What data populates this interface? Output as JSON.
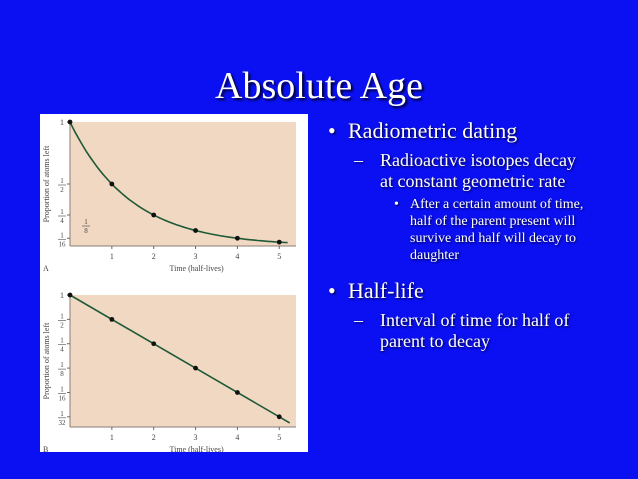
{
  "slide": {
    "title": "Absolute Age",
    "bullets": [
      {
        "text": "Radiometric dating",
        "sub": [
          {
            "text": "Radioactive isotopes decay at constant geometric rate",
            "sub": [
              "After a certain amount of time, half of the parent present will survive and half will decay to daughter"
            ]
          }
        ]
      },
      {
        "text": "Half-life",
        "sub": [
          {
            "text": "Interval of time for half of parent to decay"
          }
        ]
      }
    ],
    "bullet_mark": "•",
    "dash_mark": "–"
  },
  "colors": {
    "background": "#0a10f2",
    "plot_bg": "#f1d8c3",
    "curve": "#1e5a36"
  },
  "chart_data": [
    {
      "type": "line",
      "panel_label": "A",
      "xlabel": "Time (half-lives)",
      "ylabel": "Proportion of atoms left",
      "x_ticks": [
        "1",
        "2",
        "3",
        "4",
        "5"
      ],
      "y_ticks": [
        {
          "value": 1,
          "num": "1",
          "den": ""
        },
        {
          "value": 0.5,
          "num": "1",
          "den": "2"
        },
        {
          "value": 0.25,
          "num": "1",
          "den": "4"
        },
        {
          "value": 0.0625,
          "num": "1",
          "den": "16"
        }
      ],
      "annotation": {
        "num": "1",
        "den": "8"
      },
      "xlim": [
        0,
        5.4
      ],
      "ylim": [
        0,
        1
      ],
      "y_scale": "linear",
      "points": [
        [
          0,
          1
        ],
        [
          1,
          0.5
        ],
        [
          2,
          0.25
        ],
        [
          3,
          0.125
        ],
        [
          4,
          0.0625
        ],
        [
          5,
          0.03125
        ]
      ]
    },
    {
      "type": "line",
      "panel_label": "B",
      "xlabel": "Time (half-lives)",
      "ylabel": "Proportion of atoms left",
      "x_ticks": [
        "1",
        "2",
        "3",
        "4",
        "5"
      ],
      "y_ticks": [
        {
          "value": 1,
          "num": "1",
          "den": ""
        },
        {
          "value": 0.5,
          "num": "1",
          "den": "2"
        },
        {
          "value": 0.25,
          "num": "1",
          "den": "4"
        },
        {
          "value": 0.125,
          "num": "1",
          "den": "8"
        },
        {
          "value": 0.0625,
          "num": "1",
          "den": "16"
        },
        {
          "value": 0.03125,
          "num": "1",
          "den": "32"
        }
      ],
      "xlim": [
        0,
        5.4
      ],
      "ylim": [
        0.0234,
        1
      ],
      "y_scale": "log",
      "points": [
        [
          0,
          1
        ],
        [
          1,
          0.5
        ],
        [
          2,
          0.25
        ],
        [
          3,
          0.125
        ],
        [
          4,
          0.0625
        ],
        [
          5,
          0.03125
        ]
      ]
    }
  ]
}
